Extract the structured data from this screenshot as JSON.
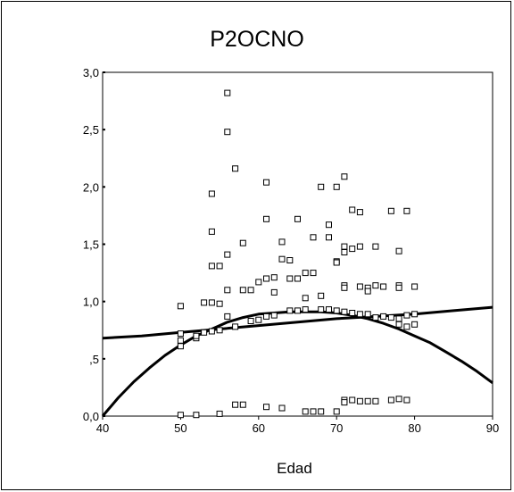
{
  "chart_data": {
    "type": "scatter",
    "title": "P2OCNO",
    "xlabel": "Edad",
    "ylabel": "",
    "xlim": [
      40,
      90
    ],
    "ylim": [
      0,
      3
    ],
    "x_ticks": [
      40,
      50,
      60,
      70,
      80,
      90
    ],
    "x_tick_labels": [
      "40",
      "50",
      "60",
      "70",
      "80",
      "90"
    ],
    "y_ticks": [
      0,
      0.5,
      1,
      1.5,
      2,
      2.5,
      3
    ],
    "y_tick_labels": [
      "0,0",
      ",5",
      "1,0",
      "1,5",
      "2,0",
      "2,5",
      "3,0"
    ],
    "grid": false,
    "marker": "open-square",
    "series": [
      {
        "kind": "points",
        "points": [
          [
            50,
            0.96
          ],
          [
            50,
            0.72
          ],
          [
            50,
            0.66
          ],
          [
            50,
            0.61
          ],
          [
            50,
            0.01
          ],
          [
            52,
            0.68
          ],
          [
            52,
            0.7
          ],
          [
            52,
            0.01
          ],
          [
            53,
            0.73
          ],
          [
            53,
            0.99
          ],
          [
            54,
            0.74
          ],
          [
            54,
            0.99
          ],
          [
            54,
            1.31
          ],
          [
            54,
            1.61
          ],
          [
            54,
            1.94
          ],
          [
            55,
            0.98
          ],
          [
            55,
            0.75
          ],
          [
            55,
            1.31
          ],
          [
            55,
            0.02
          ],
          [
            56,
            0.87
          ],
          [
            56,
            1.1
          ],
          [
            56,
            1.41
          ],
          [
            56,
            2.48
          ],
          [
            56,
            2.82
          ],
          [
            57,
            0.78
          ],
          [
            57,
            2.16
          ],
          [
            57,
            0.1
          ],
          [
            58,
            1.1
          ],
          [
            58,
            1.51
          ],
          [
            58,
            0.1
          ],
          [
            59,
            1.1
          ],
          [
            59,
            0.83
          ],
          [
            60,
            1.17
          ],
          [
            60,
            0.84
          ],
          [
            61,
            0.87
          ],
          [
            61,
            1.2
          ],
          [
            61,
            1.72
          ],
          [
            61,
            2.04
          ],
          [
            61,
            0.08
          ],
          [
            62,
            1.21
          ],
          [
            62,
            1.08
          ],
          [
            62,
            0.88
          ],
          [
            63,
            1.37
          ],
          [
            63,
            1.52
          ],
          [
            63,
            0.07
          ],
          [
            64,
            1.2
          ],
          [
            64,
            1.36
          ],
          [
            64,
            0.92
          ],
          [
            65,
            1.72
          ],
          [
            65,
            1.2
          ],
          [
            65,
            0.92
          ],
          [
            66,
            1.03
          ],
          [
            66,
            1.25
          ],
          [
            66,
            0.93
          ],
          [
            66,
            0.04
          ],
          [
            67,
            1.25
          ],
          [
            67,
            1.56
          ],
          [
            67,
            0.04
          ],
          [
            68,
            1.05
          ],
          [
            68,
            2.0
          ],
          [
            68,
            0.93
          ],
          [
            68,
            0.04
          ],
          [
            69,
            1.67
          ],
          [
            69,
            1.56
          ],
          [
            69,
            0.93
          ],
          [
            70,
            1.35
          ],
          [
            70,
            2.0
          ],
          [
            70,
            1.34
          ],
          [
            70,
            0.92
          ],
          [
            70,
            0.04
          ],
          [
            71,
            1.48
          ],
          [
            71,
            1.43
          ],
          [
            71,
            1.14
          ],
          [
            71,
            1.12
          ],
          [
            71,
            2.09
          ],
          [
            71,
            0.91
          ],
          [
            71,
            0.14
          ],
          [
            71,
            0.12
          ],
          [
            72,
            1.46
          ],
          [
            72,
            1.8
          ],
          [
            72,
            0.9
          ],
          [
            72,
            0.14
          ],
          [
            73,
            1.78
          ],
          [
            73,
            1.13
          ],
          [
            73,
            1.48
          ],
          [
            73,
            0.89
          ],
          [
            73,
            0.13
          ],
          [
            74,
            1.12
          ],
          [
            74,
            1.09
          ],
          [
            74,
            0.89
          ],
          [
            74,
            0.13
          ],
          [
            75,
            1.14
          ],
          [
            75,
            1.48
          ],
          [
            75,
            0.86
          ],
          [
            75,
            0.13
          ],
          [
            76,
            1.13
          ],
          [
            76,
            0.87
          ],
          [
            77,
            1.79
          ],
          [
            77,
            0.86
          ],
          [
            77,
            0.14
          ],
          [
            78,
            1.44
          ],
          [
            78,
            1.14
          ],
          [
            78,
            1.12
          ],
          [
            78,
            0.85
          ],
          [
            78,
            0.15
          ],
          [
            78,
            0.8
          ],
          [
            79,
            1.79
          ],
          [
            79,
            0.14
          ],
          [
            79,
            0.88
          ],
          [
            79,
            0.78
          ],
          [
            80,
            1.13
          ],
          [
            80,
            0.89
          ],
          [
            80,
            0.8
          ]
        ]
      },
      {
        "kind": "line",
        "name": "",
        "x": [
          40,
          45,
          50,
          55,
          60,
          65,
          70,
          75,
          80,
          85,
          90
        ],
        "y": [
          0.68,
          0.7,
          0.73,
          0.76,
          0.79,
          0.82,
          0.85,
          0.87,
          0.89,
          0.92,
          0.95
        ]
      },
      {
        "kind": "line",
        "name": "",
        "x": [
          40,
          42,
          44,
          46,
          48,
          50,
          52,
          54,
          56,
          58,
          60,
          62,
          64,
          66,
          68,
          70,
          72,
          74,
          76,
          78,
          80,
          82,
          84,
          86,
          88,
          90
        ],
        "y": [
          0.0,
          0.16,
          0.3,
          0.42,
          0.53,
          0.62,
          0.7,
          0.76,
          0.82,
          0.86,
          0.89,
          0.9,
          0.91,
          0.91,
          0.91,
          0.9,
          0.88,
          0.85,
          0.81,
          0.76,
          0.7,
          0.64,
          0.56,
          0.48,
          0.39,
          0.29
        ]
      }
    ]
  }
}
